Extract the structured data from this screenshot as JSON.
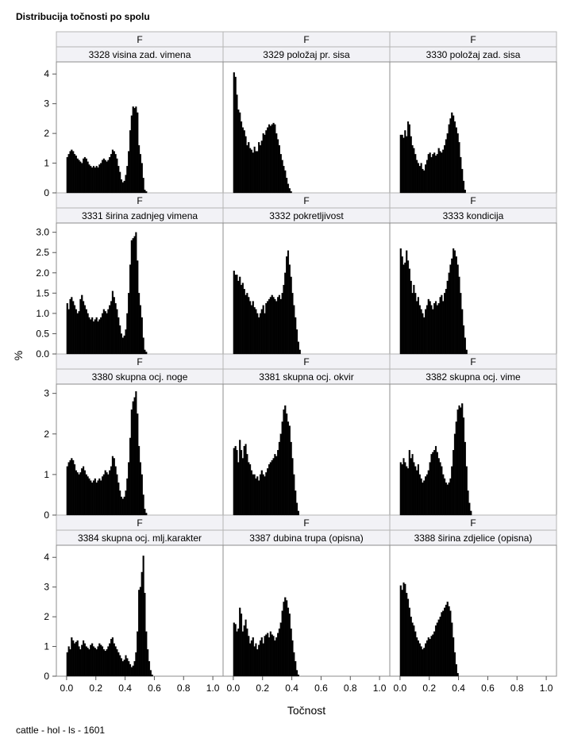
{
  "title": "Distribucija točnosti po spolu",
  "footer": "cattle - hol - ls - 1601",
  "chart_data": {
    "type": "bar",
    "layout": "3x4 paneled histogram grid",
    "xlabel": "Točnost",
    "ylabel": "%",
    "x_ticks": [
      "0.0",
      "0.2",
      "0.4",
      "0.6",
      "0.8",
      "1.0"
    ],
    "xlim": [
      -0.07,
      1.07
    ],
    "grid": true,
    "bar_color": "#000000",
    "panel_header_bg": "#f2f2f6",
    "rows": [
      {
        "ylim": [
          0,
          4.3
        ],
        "y_ticks": [
          "0",
          "1",
          "2",
          "3",
          "4"
        ],
        "y_tick_values": [
          0,
          1,
          2,
          3,
          4
        ]
      },
      {
        "ylim": [
          0,
          3.15
        ],
        "y_ticks": [
          "0.0",
          "0.5",
          "1.0",
          "1.5",
          "2.0",
          "2.5",
          "3.0"
        ],
        "y_tick_values": [
          0,
          0.5,
          1,
          1.5,
          2,
          2.5,
          3
        ]
      },
      {
        "ylim": [
          0,
          3.15
        ],
        "y_ticks": [
          "0",
          "1",
          "2",
          "3"
        ],
        "y_tick_values": [
          0,
          1,
          2,
          3
        ]
      },
      {
        "ylim": [
          0,
          4.3
        ],
        "y_ticks": [
          "0",
          "1",
          "2",
          "3",
          "4"
        ],
        "y_tick_values": [
          0,
          1,
          2,
          3,
          4
        ]
      }
    ],
    "panels": [
      {
        "sex": "F",
        "trait": "3328 visina zad. vimena",
        "bin_start": 0.0,
        "bin_width": 0.01,
        "values": [
          1.2,
          1.3,
          1.4,
          1.45,
          1.4,
          1.3,
          1.25,
          1.15,
          1.1,
          1.05,
          1.0,
          1.15,
          1.2,
          1.15,
          1.05,
          0.95,
          0.9,
          0.85,
          0.9,
          0.85,
          0.9,
          0.85,
          0.95,
          1.0,
          1.1,
          1.15,
          1.1,
          1.05,
          1.1,
          1.2,
          1.3,
          1.45,
          1.4,
          1.3,
          1.15,
          0.9,
          0.7,
          0.45,
          0.35,
          0.4,
          0.6,
          0.9,
          1.4,
          2.1,
          2.6,
          2.9,
          2.85,
          2.9,
          2.7,
          1.6,
          1.3,
          1.0,
          0.5,
          0.1,
          0.05
        ]
      },
      {
        "sex": "F",
        "trait": "3329 položaj pr. sisa",
        "bin_start": 0.0,
        "bin_width": 0.01,
        "values": [
          4.05,
          3.9,
          3.3,
          2.8,
          2.7,
          2.4,
          2.2,
          2.1,
          1.9,
          1.6,
          1.7,
          1.5,
          1.45,
          1.35,
          1.55,
          1.4,
          1.4,
          1.7,
          1.6,
          1.75,
          2.0,
          1.95,
          2.1,
          2.2,
          2.3,
          2.25,
          2.3,
          2.35,
          2.3,
          2.0,
          1.8,
          1.6,
          1.3,
          1.1,
          0.9,
          0.75,
          0.5,
          0.3,
          0.15,
          0.05
        ]
      },
      {
        "sex": "F",
        "trait": "3330 položaj zad. sisa",
        "bin_start": 0.0,
        "bin_width": 0.01,
        "values": [
          1.95,
          1.95,
          1.85,
          2.1,
          1.9,
          2.4,
          2.3,
          1.9,
          1.6,
          1.5,
          1.3,
          1.1,
          1.0,
          0.9,
          1.0,
          0.8,
          0.75,
          0.95,
          1.1,
          1.3,
          1.35,
          1.2,
          1.3,
          1.35,
          1.25,
          1.3,
          1.5,
          1.4,
          1.35,
          1.45,
          1.6,
          1.8,
          2.0,
          2.3,
          2.5,
          2.7,
          2.6,
          2.4,
          2.2,
          2.0,
          1.7,
          1.2,
          0.8,
          0.4,
          0.1
        ]
      },
      {
        "sex": "F",
        "trait": "3331 širina zadnjeg vimena",
        "bin_start": 0.0,
        "bin_width": 0.01,
        "values": [
          1.25,
          1.1,
          1.35,
          1.4,
          1.3,
          1.2,
          1.1,
          1.0,
          1.05,
          1.35,
          1.45,
          1.3,
          1.2,
          1.1,
          1.0,
          0.9,
          0.85,
          0.9,
          0.8,
          0.85,
          0.9,
          0.8,
          0.85,
          0.9,
          1.0,
          1.1,
          1.05,
          1.0,
          1.1,
          1.2,
          1.3,
          1.55,
          1.4,
          1.25,
          1.1,
          0.9,
          0.7,
          0.5,
          0.4,
          0.45,
          0.6,
          1.0,
          1.5,
          2.2,
          2.8,
          2.85,
          2.9,
          3.0,
          2.3,
          1.5,
          1.2,
          0.9,
          0.4,
          0.1,
          0.05
        ]
      },
      {
        "sex": "F",
        "trait": "3332 pokretljivost",
        "bin_start": 0.0,
        "bin_width": 0.01,
        "values": [
          2.05,
          1.95,
          1.95,
          1.8,
          1.9,
          1.7,
          1.75,
          1.6,
          1.45,
          1.5,
          1.4,
          1.3,
          1.2,
          1.3,
          1.15,
          1.1,
          1.0,
          0.9,
          1.0,
          1.1,
          1.2,
          1.0,
          1.25,
          1.3,
          1.35,
          1.4,
          1.45,
          1.4,
          1.35,
          1.3,
          1.4,
          1.45,
          1.35,
          1.5,
          1.7,
          2.0,
          2.4,
          2.55,
          2.2,
          1.9,
          1.5,
          1.2,
          0.9,
          0.6,
          0.3,
          0.1
        ]
      },
      {
        "sex": "F",
        "trait": "3333 kondicija",
        "bin_start": 0.0,
        "bin_width": 0.01,
        "values": [
          2.6,
          2.4,
          2.2,
          2.25,
          2.55,
          2.3,
          2.1,
          1.8,
          1.5,
          1.7,
          1.5,
          1.3,
          1.4,
          1.2,
          1.1,
          1.0,
          0.9,
          1.1,
          1.2,
          1.35,
          1.3,
          1.2,
          1.1,
          1.25,
          1.3,
          1.2,
          1.25,
          1.4,
          1.45,
          1.3,
          1.5,
          1.6,
          1.8,
          2.0,
          2.2,
          2.35,
          2.6,
          2.55,
          2.4,
          2.2,
          1.9,
          1.5,
          1.1,
          0.7,
          0.4,
          0.1
        ]
      },
      {
        "sex": "F",
        "trait": "3380 skupna ocj. noge",
        "bin_start": 0.0,
        "bin_width": 0.01,
        "values": [
          1.2,
          1.3,
          1.35,
          1.4,
          1.35,
          1.25,
          1.1,
          1.05,
          1.0,
          1.05,
          1.15,
          1.2,
          1.1,
          1.0,
          0.95,
          0.9,
          0.85,
          0.8,
          0.85,
          0.9,
          0.8,
          0.85,
          0.9,
          0.85,
          0.95,
          1.0,
          1.1,
          1.05,
          1.0,
          1.1,
          1.2,
          1.45,
          1.4,
          1.2,
          1.0,
          0.8,
          0.6,
          0.45,
          0.4,
          0.45,
          0.6,
          0.9,
          1.3,
          1.9,
          2.6,
          2.8,
          2.9,
          3.05,
          2.5,
          1.7,
          1.3,
          1.0,
          0.5,
          0.15,
          0.05
        ]
      },
      {
        "sex": "F",
        "trait": "3381 skupna ocj. okvir",
        "bin_start": 0.0,
        "bin_width": 0.01,
        "values": [
          1.65,
          1.7,
          1.6,
          1.3,
          1.85,
          1.6,
          1.4,
          1.7,
          1.75,
          1.5,
          1.3,
          1.25,
          1.1,
          1.0,
          1.0,
          0.9,
          0.95,
          0.85,
          1.0,
          1.1,
          1.0,
          0.95,
          1.05,
          1.15,
          1.25,
          1.3,
          1.35,
          1.4,
          1.5,
          1.45,
          1.6,
          1.8,
          2.0,
          2.3,
          2.6,
          2.7,
          2.5,
          2.3,
          2.2,
          1.8,
          1.4,
          1.0,
          0.6,
          0.3,
          0.1
        ]
      },
      {
        "sex": "F",
        "trait": "3382 skupna ocj. vime",
        "bin_start": 0.0,
        "bin_width": 0.01,
        "values": [
          1.3,
          1.25,
          1.4,
          1.3,
          1.2,
          1.15,
          1.6,
          1.4,
          1.5,
          1.3,
          1.2,
          1.1,
          1.25,
          1.0,
          0.9,
          0.8,
          0.85,
          0.95,
          1.0,
          1.1,
          1.3,
          1.5,
          1.55,
          1.6,
          1.7,
          1.55,
          1.4,
          1.3,
          1.2,
          1.0,
          0.9,
          0.8,
          0.75,
          0.8,
          0.9,
          1.2,
          1.6,
          2.0,
          2.3,
          2.6,
          2.7,
          2.65,
          2.75,
          2.4,
          1.8,
          1.2,
          0.6,
          0.3,
          0.1
        ]
      },
      {
        "sex": "F",
        "trait": "3384 skupna ocj. mlj.karakter",
        "bin_start": 0.0,
        "bin_width": 0.01,
        "values": [
          0.8,
          1.0,
          0.9,
          1.3,
          1.2,
          1.1,
          1.15,
          1.2,
          1.0,
          0.9,
          1.05,
          1.2,
          1.1,
          1.0,
          0.95,
          0.9,
          1.05,
          1.1,
          1.0,
          0.95,
          0.9,
          1.0,
          1.1,
          1.05,
          1.0,
          0.9,
          0.85,
          0.9,
          1.0,
          1.1,
          1.25,
          1.3,
          1.1,
          1.0,
          0.9,
          0.8,
          0.7,
          0.6,
          0.5,
          0.55,
          0.7,
          0.6,
          0.5,
          0.4,
          0.3,
          0.35,
          0.5,
          0.8,
          1.5,
          2.9,
          3.0,
          3.5,
          4.05,
          2.8,
          1.5,
          0.9,
          0.5,
          0.2,
          0.05
        ]
      },
      {
        "sex": "F",
        "trait": "3387 dubina trupa (opisna)",
        "bin_start": 0.0,
        "bin_width": 0.01,
        "values": [
          1.8,
          1.75,
          1.5,
          1.6,
          2.3,
          2.1,
          1.5,
          1.7,
          1.9,
          1.6,
          1.35,
          1.1,
          1.2,
          1.3,
          1.0,
          1.1,
          0.9,
          1.05,
          1.2,
          1.3,
          1.1,
          1.35,
          1.4,
          1.45,
          1.3,
          1.5,
          1.4,
          1.35,
          1.2,
          1.3,
          1.45,
          1.6,
          1.8,
          2.2,
          2.5,
          2.65,
          2.55,
          2.3,
          2.1,
          1.6,
          1.2,
          0.8,
          0.5,
          0.2,
          0.05
        ]
      },
      {
        "sex": "F",
        "trait": "3388 širina zdjelice (opisna)",
        "bin_start": 0.0,
        "bin_width": 0.01,
        "values": [
          3.05,
          2.9,
          3.15,
          3.1,
          2.8,
          2.6,
          2.3,
          2.0,
          1.8,
          1.7,
          1.5,
          1.3,
          1.2,
          1.1,
          1.0,
          0.9,
          0.95,
          1.1,
          1.2,
          1.3,
          1.25,
          1.35,
          1.4,
          1.5,
          1.7,
          1.8,
          1.9,
          2.0,
          2.15,
          2.2,
          2.3,
          2.4,
          2.5,
          2.35,
          2.2,
          1.8,
          1.3,
          0.8,
          0.4,
          0.1
        ]
      }
    ]
  }
}
